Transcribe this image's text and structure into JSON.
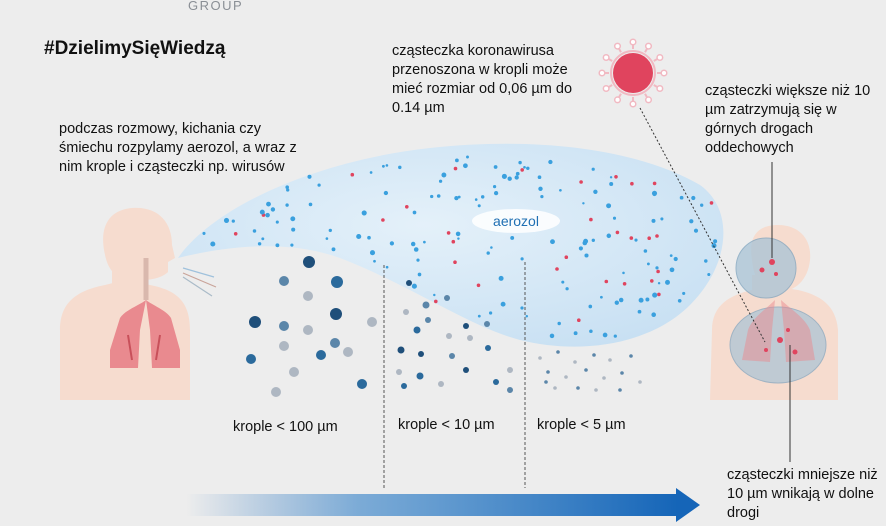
{
  "header": {
    "brand_group": "GROUP",
    "hashtag": "#DzielimySięWiedzą"
  },
  "texts": {
    "intro": "podczas rozmowy, kichania czy śmiechu rozpylamy aerozol, a wraz z nim krople i cząsteczki np. wirusów",
    "coronavirus": "cząsteczka koronawirusa przenoszona w kropli może mieć rozmiar od 0,06 µm do 0.14 µm",
    "aerosol": "aerozol",
    "larger_particles": "cząsteczki większe niż 10 µm zatrzymują się w górnych drogach oddechowych",
    "smaller_particles": "cząsteczki mniejsze niż 10 µm wnikają w dolne drogi"
  },
  "droplet_categories": [
    {
      "label": "krople < 100 µm"
    },
    {
      "label": "krople < 10 µm"
    },
    {
      "label": "krople < 5 µm"
    }
  ],
  "colors": {
    "background": "#ededed",
    "aerosol_cloud": "#cfe6f7",
    "aerosol_dot_blue": "#3aa0de",
    "aerosol_dot_red": "#e0445e",
    "virus": "#e0445e",
    "body_skin": "#f6dccf",
    "lungs": "#e98a8f",
    "arrow": "#1565b8"
  },
  "icons": {
    "virus": "coronavirus-icon",
    "person_left": "person-speaking-icon",
    "person_right": "person-lungs-icon",
    "arrow": "right-arrow-icon"
  }
}
